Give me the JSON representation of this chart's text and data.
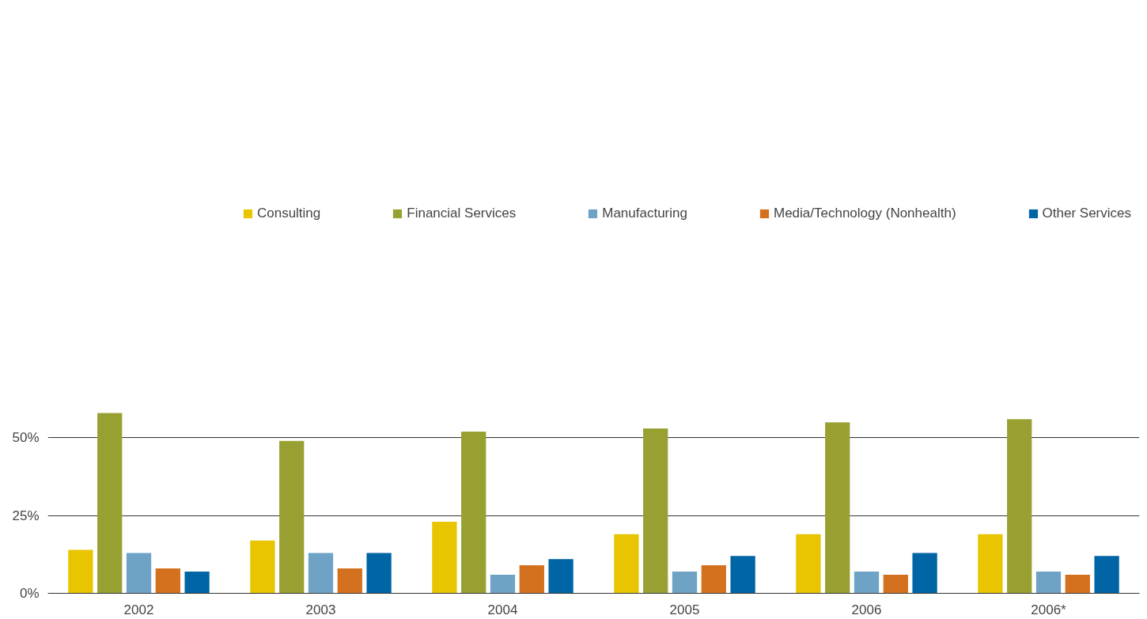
{
  "chart_data": {
    "type": "bar",
    "categories": [
      "2002",
      "2003",
      "2004",
      "2005",
      "2006",
      "2006*"
    ],
    "series": [
      {
        "name": "Consulting",
        "color": "#e8c500",
        "values": [
          14,
          17,
          23,
          19,
          19,
          19
        ]
      },
      {
        "name": "Financial Services",
        "color": "#98a032",
        "values": [
          58,
          49,
          52,
          53,
          55,
          56
        ]
      },
      {
        "name": "Manufacturing",
        "color": "#6ea3c6",
        "values": [
          13,
          13,
          6,
          7,
          7,
          7
        ]
      },
      {
        "name": "Media/Technology (Nonhealth)",
        "color": "#d4711e",
        "values": [
          8,
          8,
          9,
          9,
          6,
          6
        ]
      },
      {
        "name": "Other Services",
        "color": "#0065a4",
        "values": [
          7,
          13,
          11,
          12,
          13,
          12
        ]
      }
    ],
    "ylim": [
      0,
      58.5
    ],
    "yticks": [
      {
        "value": 0,
        "label": "0%"
      },
      {
        "value": 25,
        "label": "25%"
      },
      {
        "value": 50,
        "label": "50%"
      }
    ],
    "grid": "y",
    "legend": "top"
  }
}
